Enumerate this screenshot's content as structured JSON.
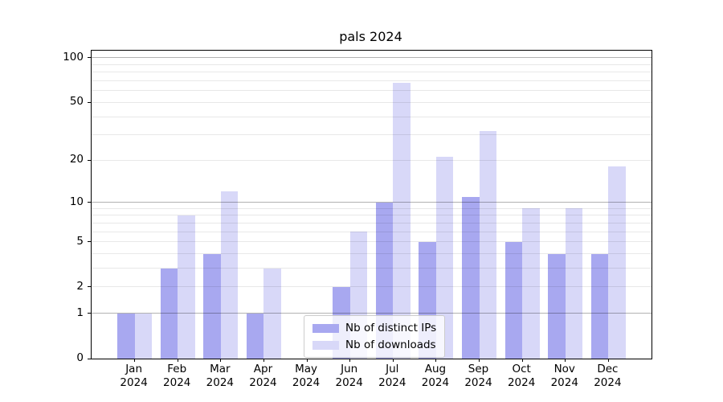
{
  "chart_data": {
    "type": "bar",
    "title": "pals 2024",
    "x": [
      "Jan",
      "Feb",
      "Mar",
      "Apr",
      "May",
      "Jun",
      "Jul",
      "Aug",
      "Sep",
      "Oct",
      "Nov",
      "Dec"
    ],
    "x_year": "2024",
    "series": [
      {
        "name": "Nb of distinct IPs",
        "color": "#a8a8f0",
        "values": [
          1,
          3,
          4,
          1,
          0,
          2,
          10,
          5,
          11,
          5,
          4,
          4
        ]
      },
      {
        "name": "Nb of downloads",
        "color": "#d8d8f8",
        "values": [
          1,
          8,
          12,
          3,
          0,
          6,
          68,
          21,
          32,
          9,
          9,
          18
        ]
      }
    ],
    "y_axis": {
      "scale": "log1p",
      "labeled_ticks": [
        0,
        1,
        2,
        5,
        10,
        20,
        50,
        100
      ],
      "major_gridlines": [
        1,
        10,
        100
      ],
      "minor_gridlines": [
        2,
        3,
        4,
        5,
        6,
        7,
        8,
        9,
        20,
        30,
        40,
        50,
        60,
        70,
        80,
        90
      ],
      "max": 111.8
    },
    "legend": {
      "position": "bottom-center",
      "entries": [
        "Nb of distinct IPs",
        "Nb of downloads"
      ]
    },
    "grid": true,
    "colors": {
      "background": "#ffffff",
      "text": "#000000",
      "spine": "#000000",
      "major_grid": "#b3b3b3",
      "minor_grid": "#e8e8e8"
    }
  }
}
